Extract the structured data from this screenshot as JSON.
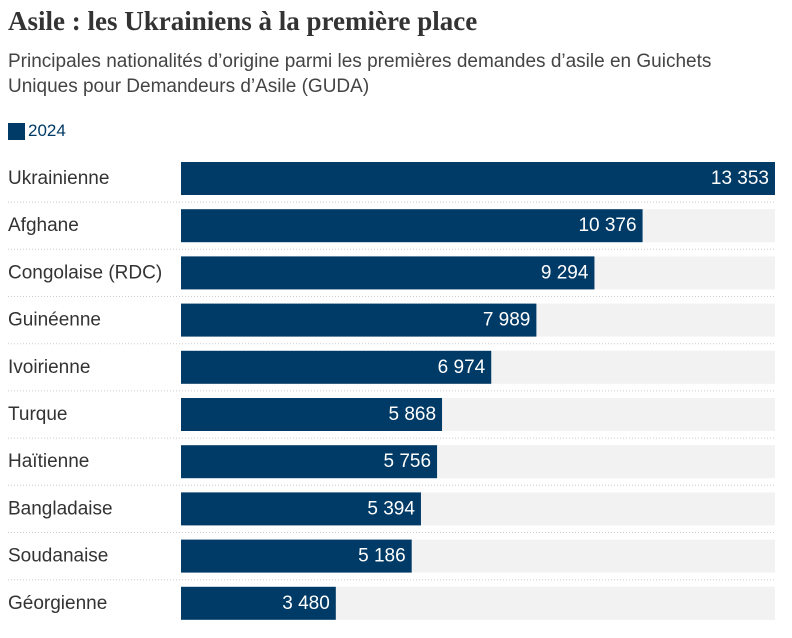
{
  "chart_data": {
    "type": "bar",
    "orientation": "horizontal",
    "title": "Asile : les Ukrainiens à la première place",
    "subtitle": "Principales nationalités d’origine parmi les premières demandes d’asile en Guichets Uniques pour Demandeurs d’Asile (GUDA)",
    "legend": {
      "placement": "top-left"
    },
    "categories": [
      "Ukrainienne",
      "Afghane",
      "Congolaise (RDC)",
      "Guinéenne",
      "Ivoirienne",
      "Turque",
      "Haïtienne",
      "Bangladaise",
      "Soudanaise",
      "Géorgienne"
    ],
    "series": [
      {
        "name": "2024",
        "values": [
          13353,
          10376,
          9294,
          7989,
          6974,
          5868,
          5756,
          5394,
          5186,
          3480
        ],
        "labels": [
          "13 353",
          "10 376",
          "9 294",
          "7 989",
          "6 974",
          "5 868",
          "5 756",
          "5 394",
          "5 186",
          "3 480"
        ]
      }
    ],
    "xlim": [
      0,
      13353
    ],
    "grid": false,
    "colors": {
      "bar": "#003a66",
      "track": "#f2f2f2",
      "separator": "#cccccc",
      "value_label": "#ffffff"
    }
  }
}
